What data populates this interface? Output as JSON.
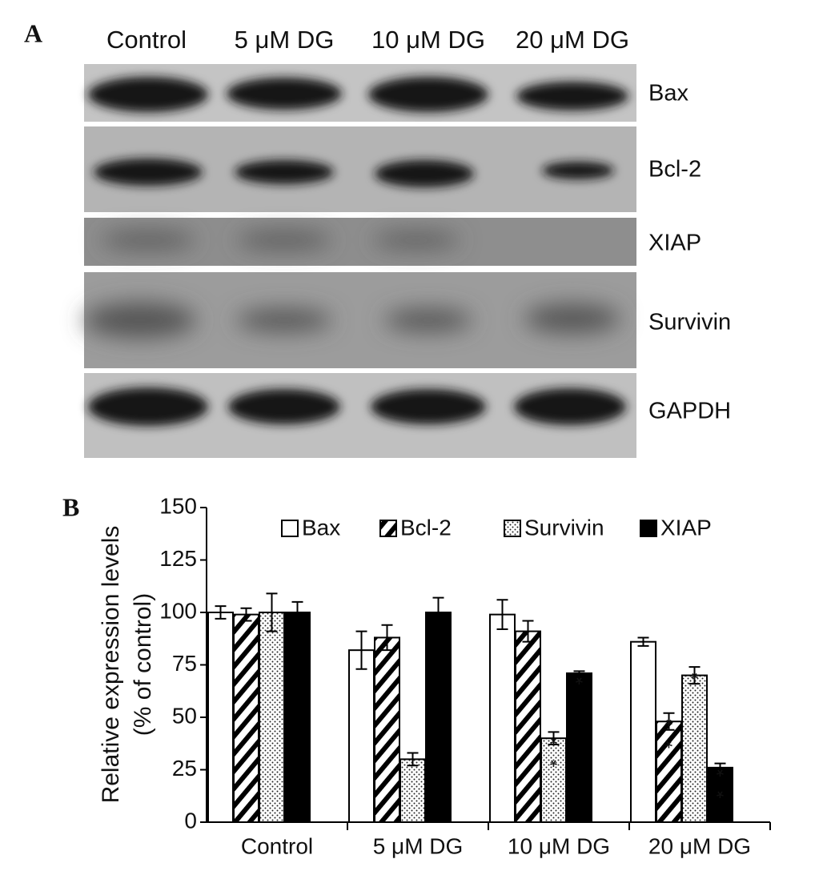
{
  "panels": {
    "a": "A",
    "b": "B"
  },
  "blot": {
    "lanes": [
      "Control",
      "5 μM DG",
      "10 μM DG",
      "20 μM DG"
    ],
    "bands": [
      "Bax",
      "Bcl-2",
      "XIAP",
      "Survivin",
      "GAPDH"
    ]
  },
  "chart_data": {
    "type": "bar",
    "ylabel": [
      "Relative expression levels",
      "(% of control)"
    ],
    "categories": [
      "Control",
      "5 μM DG",
      "10 μM DG",
      "20 μM DG"
    ],
    "series": [
      {
        "name": "Bax",
        "color": "#000000",
        "pattern": "none",
        "values": [
          100,
          82,
          99,
          86
        ],
        "errors": [
          3,
          9,
          7,
          2
        ],
        "annotations": [
          null,
          null,
          null,
          null
        ]
      },
      {
        "name": "Bcl-2",
        "color": "#000000",
        "pattern": "hatch",
        "values": [
          99,
          88,
          91,
          48
        ],
        "errors": [
          3,
          6,
          5,
          4
        ],
        "annotations": [
          null,
          null,
          null,
          "**"
        ]
      },
      {
        "name": "Survivin",
        "color": "#000000",
        "pattern": "dots",
        "values": [
          100,
          30,
          40,
          70
        ],
        "errors": [
          9,
          3,
          3,
          4
        ],
        "annotations": [
          null,
          null,
          "**",
          "*"
        ]
      },
      {
        "name": "XIAP",
        "color": "#000000",
        "pattern": "solid",
        "values": [
          100,
          100,
          71,
          26
        ],
        "errors": [
          5,
          7,
          1,
          2
        ],
        "annotations": [
          null,
          null,
          "*",
          "**"
        ]
      }
    ],
    "ylim": [
      0,
      150
    ],
    "yticks": [
      0,
      25,
      50,
      75,
      100,
      125,
      150
    ],
    "legend": "top",
    "grid": false
  }
}
